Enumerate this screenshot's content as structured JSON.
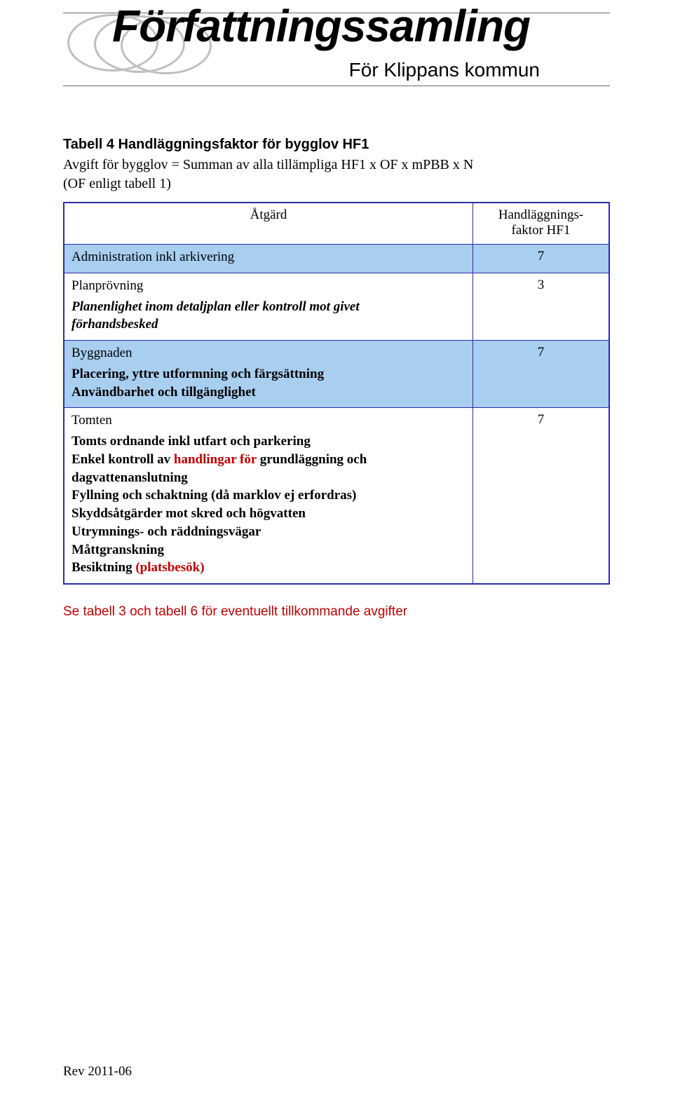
{
  "banner": {
    "title": "Författningssamling",
    "subtitle": "För Klippans kommun"
  },
  "section_title": "Tabell 4 Handläggningsfaktor för bygglov HF1",
  "subtitle_line": "Avgift för bygglov = Summan av alla tillämpliga HF1 x OF x mPBB x N",
  "subtitle_paren": "(OF enligt tabell 1)",
  "table": {
    "header": {
      "action": "Åtgärd",
      "factor_line1": "Handläggnings-",
      "factor_line2": "faktor HF1"
    },
    "border_color": "#2b2ba8",
    "shade_color": "#a8cef0",
    "rows": [
      {
        "shaded": true,
        "value": "7",
        "lines": [
          {
            "text": "Administration inkl arkivering",
            "style": "plain"
          }
        ]
      },
      {
        "shaded": false,
        "value": "3",
        "lines": [
          {
            "text": "Planprövning",
            "style": "plain"
          },
          {
            "text": "Planenlighet inom detaljplan eller kontroll mot givet",
            "style": "bolditalic"
          },
          {
            "text": "förhandsbesked",
            "style": "bolditalic"
          }
        ]
      },
      {
        "shaded": true,
        "value": "7",
        "lines": [
          {
            "text": "Byggnaden",
            "style": "plain"
          },
          {
            "text": "Placering, yttre utformning och färgsättning",
            "style": "bold"
          },
          {
            "text": "Användbarhet och tillgänglighet",
            "style": "bold"
          }
        ]
      },
      {
        "shaded": false,
        "value": "7",
        "lines": [
          {
            "text": "Tomten",
            "style": "plain"
          },
          {
            "text": "Tomts ordnande inkl utfart och parkering",
            "style": "bold"
          },
          {
            "prefix": "Enkel kontroll av ",
            "red": "handlingar för",
            "suffix": " grundläggning och",
            "style": "mixed"
          },
          {
            "text": "dagvattenanslutning",
            "style": "bold"
          },
          {
            "text": "Fyllning och schaktning (då marklov ej erfordras)",
            "style": "bold"
          },
          {
            "text": "Skyddsåtgärder mot skred och högvatten",
            "style": "bold"
          },
          {
            "text": "Utrymnings- och räddningsvägar",
            "style": "bold"
          },
          {
            "text": "Måttgranskning",
            "style": "bold"
          },
          {
            "prefix": "Besiktning ",
            "red": "(platsbesök)",
            "suffix": "",
            "style": "mixed"
          }
        ]
      }
    ]
  },
  "footnote": "Se tabell 3 och tabell 6 för eventuellt tillkommande avgifter",
  "footer": "Rev 2011-06"
}
